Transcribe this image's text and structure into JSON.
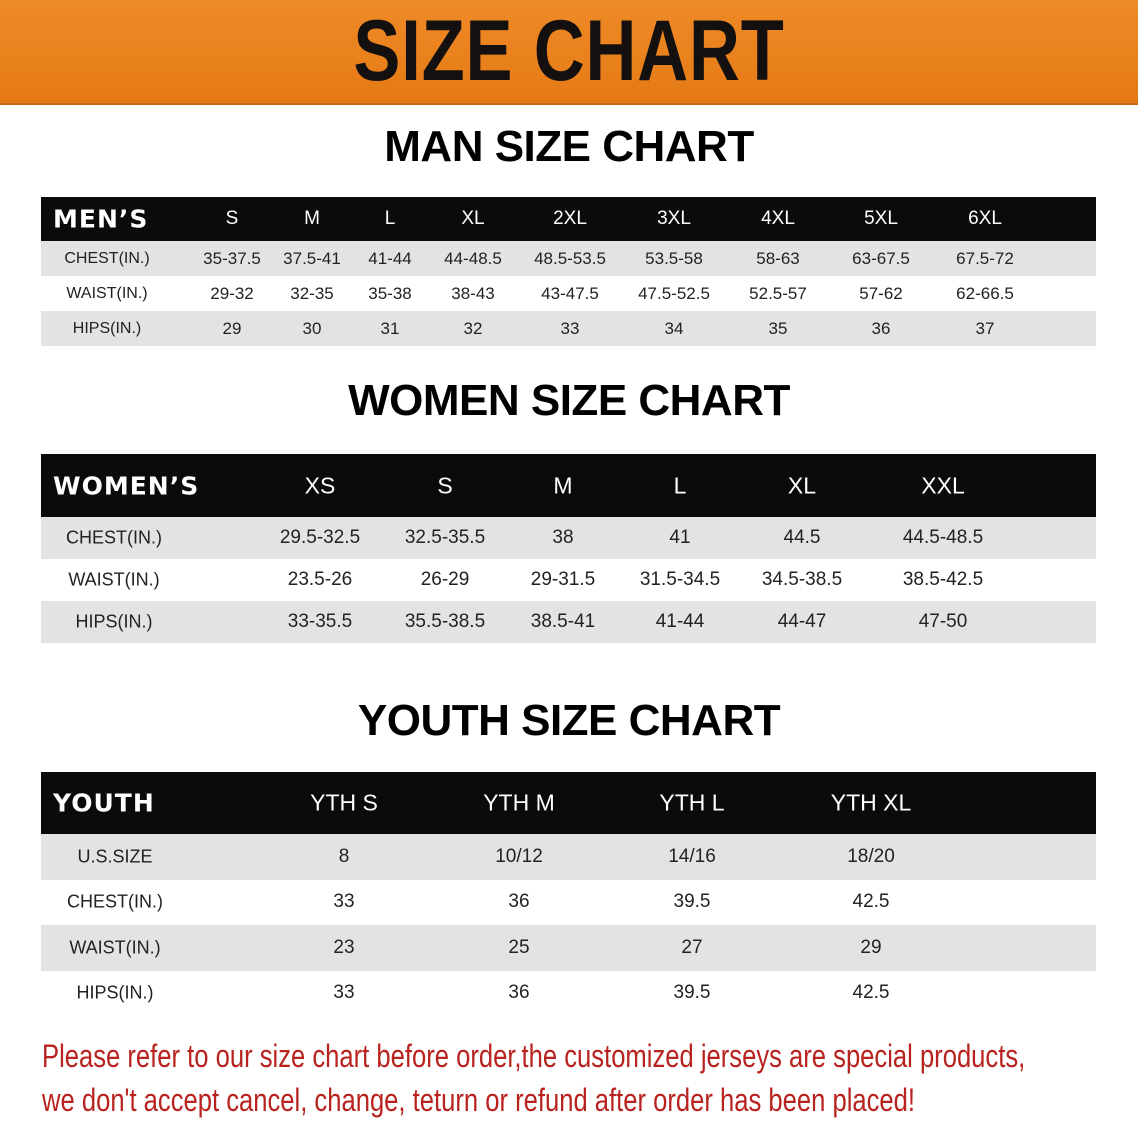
{
  "banner": {
    "title": "SIZE CHART",
    "color": "#e8801d"
  },
  "men": {
    "title": "MAN SIZE CHART",
    "header_label": "MEN’S",
    "sizes": [
      "S",
      "M",
      "L",
      "XL",
      "2XL",
      "3XL",
      "4XL",
      "5XL",
      "6XL"
    ],
    "rows": [
      {
        "label": "CHEST(IN.)",
        "values": [
          "35-37.5",
          "37.5-41",
          "41-44",
          "44-48.5",
          "48.5-53.5",
          "53.5-58",
          "58-63",
          "63-67.5",
          "67.5-72"
        ]
      },
      {
        "label": "WAIST(IN.)",
        "values": [
          "29-32",
          "32-35",
          "35-38",
          "38-43",
          "43-47.5",
          "47.5-52.5",
          "52.5-57",
          "57-62",
          "62-66.5"
        ]
      },
      {
        "label": "HIPS(IN.)",
        "values": [
          "29",
          "30",
          "31",
          "32",
          "33",
          "34",
          "35",
          "36",
          "37"
        ]
      }
    ]
  },
  "women": {
    "title": "WOMEN SIZE CHART",
    "header_label": "WOMEN’S",
    "sizes": [
      "XS",
      "S",
      "M",
      "L",
      "XL",
      "XXL"
    ],
    "rows": [
      {
        "label": "CHEST(IN.)",
        "values": [
          "29.5-32.5",
          "32.5-35.5",
          "38",
          "41",
          "44.5",
          "44.5-48.5"
        ]
      },
      {
        "label": "WAIST(IN.)",
        "values": [
          "23.5-26",
          "26-29",
          "29-31.5",
          "31.5-34.5",
          "34.5-38.5",
          "38.5-42.5"
        ]
      },
      {
        "label": "HIPS(IN.)",
        "values": [
          "33-35.5",
          "35.5-38.5",
          "38.5-41",
          "41-44",
          "44-47",
          "47-50"
        ]
      }
    ]
  },
  "youth": {
    "title": "YOUTH SIZE CHART",
    "header_label": "YOUTH",
    "sizes": [
      "YTH S",
      "YTH M",
      "YTH L",
      "YTH XL"
    ],
    "rows": [
      {
        "label": "U.S.SIZE",
        "values": [
          "8",
          "10/12",
          "14/16",
          "18/20"
        ]
      },
      {
        "label": "CHEST(IN.)",
        "values": [
          "33",
          "36",
          "39.5",
          "42.5"
        ]
      },
      {
        "label": "WAIST(IN.)",
        "values": [
          "23",
          "25",
          "27",
          "29"
        ]
      },
      {
        "label": "HIPS(IN.)",
        "values": [
          "33",
          "36",
          "39.5",
          "42.5"
        ]
      }
    ]
  },
  "footer": {
    "line1": "Please refer to our size chart before order,the customized jerseys are special products,",
    "line2": "we don't accept cancel, change, teturn or refund after order has been placed!",
    "color": "#b8231f"
  }
}
